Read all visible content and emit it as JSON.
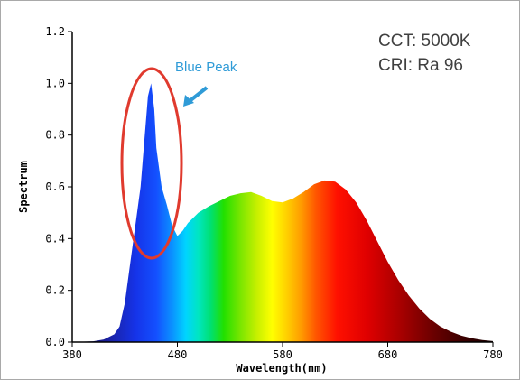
{
  "chart_data": {
    "type": "area",
    "title": "",
    "xlabel": "Wavelength(nm)",
    "ylabel": "Spectrum",
    "xlim": [
      380,
      780
    ],
    "ylim": [
      0,
      1.2
    ],
    "x_ticks": [
      "380",
      "480",
      "580",
      "680",
      "780"
    ],
    "y_ticks": [
      "0.0",
      "0.2",
      "0.4",
      "0.6",
      "0.8",
      "1.0",
      "1.2"
    ],
    "grid": false,
    "fill": "visible-spectrum gradient (wavelength-colored)",
    "x": [
      380,
      400,
      410,
      420,
      425,
      430,
      435,
      440,
      445,
      450,
      452,
      455,
      458,
      460,
      465,
      470,
      475,
      480,
      485,
      490,
      500,
      510,
      520,
      530,
      540,
      550,
      560,
      570,
      580,
      590,
      600,
      610,
      620,
      630,
      640,
      650,
      660,
      670,
      680,
      690,
      700,
      710,
      720,
      730,
      740,
      750,
      760,
      770,
      780
    ],
    "y": [
      0.0,
      0.003,
      0.01,
      0.03,
      0.06,
      0.15,
      0.3,
      0.45,
      0.6,
      0.85,
      0.95,
      1.0,
      0.9,
      0.75,
      0.6,
      0.53,
      0.45,
      0.41,
      0.43,
      0.46,
      0.5,
      0.525,
      0.545,
      0.565,
      0.575,
      0.58,
      0.565,
      0.545,
      0.54,
      0.555,
      0.58,
      0.61,
      0.625,
      0.62,
      0.59,
      0.54,
      0.47,
      0.39,
      0.31,
      0.24,
      0.18,
      0.13,
      0.09,
      0.06,
      0.04,
      0.025,
      0.015,
      0.008,
      0.004
    ]
  },
  "info": {
    "cct": "CCT: 5000K",
    "cri": "CRI:  Ra 96"
  },
  "annotation": {
    "label": "Blue Peak",
    "label_color": "#2f9bd7",
    "circle_color": "#e03a2e"
  }
}
